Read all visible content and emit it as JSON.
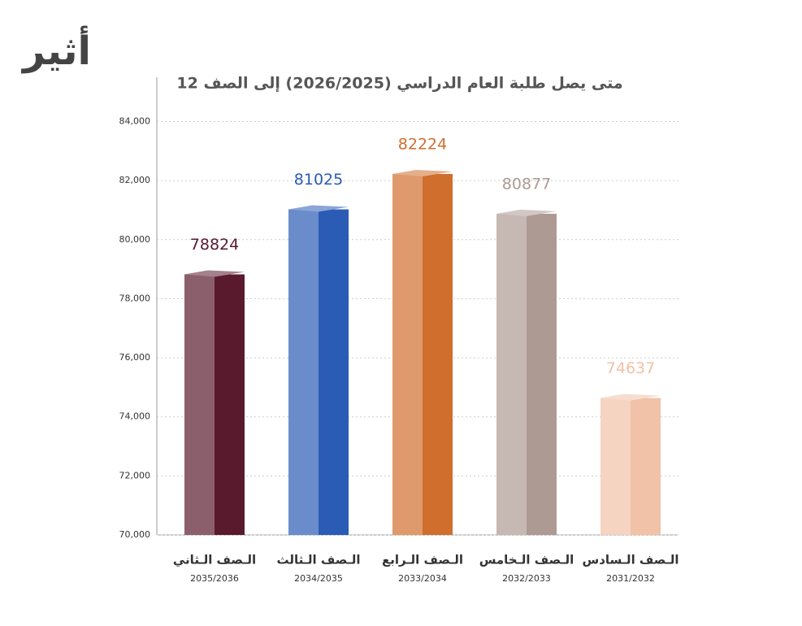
{
  "logo": "أثير",
  "chart_data": {
    "type": "bar3d",
    "title": "متى يصل طلبة العام الدراسي (2026/2025) إلى الصف 12",
    "categories": [
      "الـصف الـثاني",
      "الـصف الـثالث",
      "الـصف الـرابع",
      "الـصف الـخامس",
      "الـصف الـسادس"
    ],
    "subcategories": [
      "2035/2036",
      "2034/2035",
      "2033/2034",
      "2032/2033",
      "2031/2032"
    ],
    "values": [
      78824,
      81025,
      82224,
      80877,
      74637
    ],
    "colors": [
      "#5a1a2e",
      "#2a5bb5",
      "#d06e2e",
      "#ad9a93",
      "#f1c1a8"
    ],
    "ylim": [
      70000,
      85500
    ],
    "yticks": [
      {
        "value": 70000,
        "label": "70,000"
      },
      {
        "value": 72000,
        "label": "72,000"
      },
      {
        "value": 74000,
        "label": "74,000"
      },
      {
        "value": 76000,
        "label": "76,000"
      },
      {
        "value": 78000,
        "label": "78,000"
      },
      {
        "value": 80000,
        "label": "80,000"
      },
      {
        "value": 82000,
        "label": "82,000"
      },
      {
        "value": 84000,
        "label": "84,000"
      }
    ],
    "grid": true
  }
}
